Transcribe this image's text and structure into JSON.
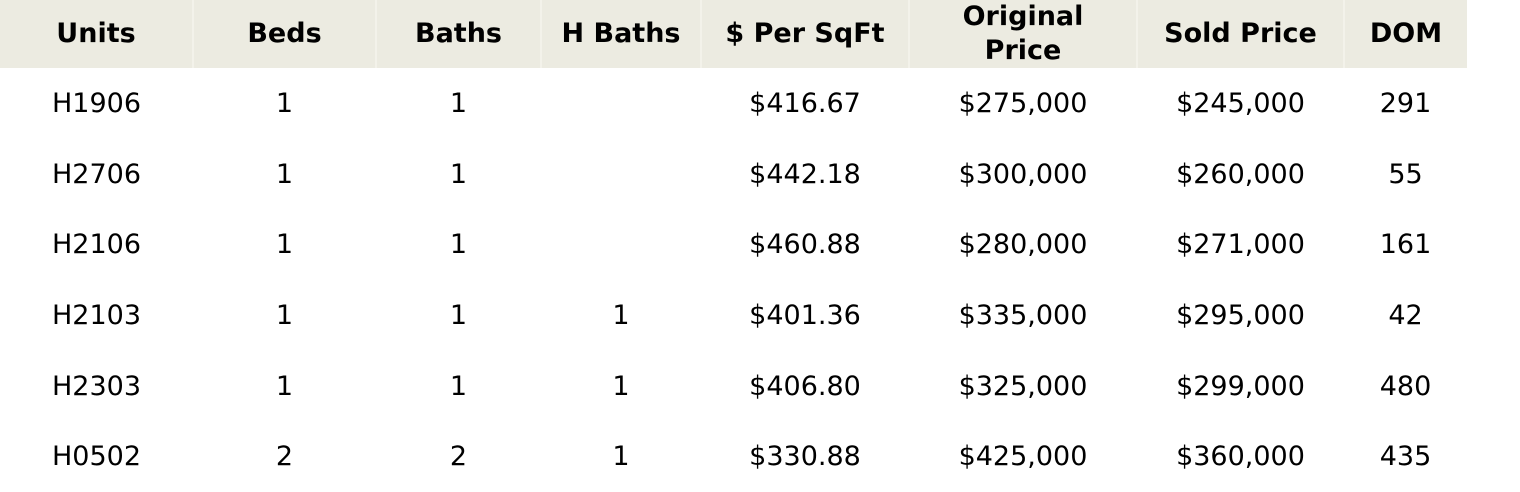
{
  "table": {
    "headers": [
      [
        "Units"
      ],
      [
        "Beds"
      ],
      [
        "Baths"
      ],
      [
        "H Baths"
      ],
      [
        "$ Per SqFt"
      ],
      [
        "Original",
        "Price"
      ],
      [
        "Sold Price"
      ],
      [
        "DOM"
      ]
    ],
    "rows": [
      [
        "H1906",
        "1",
        "1",
        "",
        "$416.67",
        "$275,000",
        "$245,000",
        "291"
      ],
      [
        "H2706",
        "1",
        "1",
        "",
        "$442.18",
        "$300,000",
        "$260,000",
        "55"
      ],
      [
        "H2106",
        "1",
        "1",
        "",
        "$460.88",
        "$280,000",
        "$271,000",
        "161"
      ],
      [
        "H2103",
        "1",
        "1",
        "1",
        "$401.36",
        "$335,000",
        "$295,000",
        "42"
      ],
      [
        "H2303",
        "1",
        "1",
        "1",
        "$406.80",
        "$325,000",
        "$299,000",
        "480"
      ],
      [
        "H0502",
        "2",
        "2",
        "1",
        "$330.88",
        "$425,000",
        "$360,000",
        "435"
      ]
    ]
  }
}
